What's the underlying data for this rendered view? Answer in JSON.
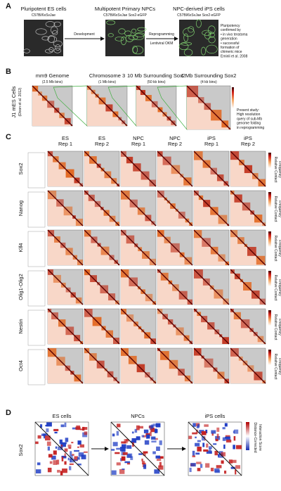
{
  "panel_a": {
    "label": "A",
    "stages": [
      {
        "title": "Pluripotent ES cells",
        "subtitle": "C57Bl/6xSvJae"
      },
      {
        "title": "Multipotent Primary NPCs",
        "subtitle": "C57Bl/6xSvJae  Sox2-eGFP"
      },
      {
        "title": "NPC-derived iPS cells",
        "subtitle": "C57Bl/6xSvJae Sox2-eGFP"
      }
    ],
    "arrow_1": "Development",
    "arrow_2_top": "Reprogramming",
    "arrow_2_bottom": "Lentiviral OKM",
    "note": [
      "Pluripotency",
      "confirmed by",
      "• in vivo teratoma",
      "generation",
      "• successful",
      "formation of",
      "chimeric mice",
      "Eminli et al. 2008"
    ]
  },
  "panel_b": {
    "label": "B",
    "row_label": "J1 mES Cells",
    "row_source": "(Dixon et al. 2012)",
    "maps": [
      {
        "title": "mm9 Genome",
        "subtitle": "(2.5 Mb bins)"
      },
      {
        "title": "Chromosome 3",
        "subtitle": "(1 Mb bins)"
      },
      {
        "title": "10 Mb Surrounding Sox2",
        "subtitle": "(50 kb bins)"
      },
      {
        "title": "1 Mb Surrounding Sox2",
        "subtitle": "(4 kb bins)"
      }
    ],
    "note": [
      "Present study:",
      "High resolution",
      "query of sub-Mb",
      "genome folding",
      "in reprogramming"
    ]
  },
  "panel_c": {
    "label": "C",
    "columns": [
      {
        "line1": "ES",
        "line2": "Rep 1"
      },
      {
        "line1": "ES",
        "line2": "Rep 2"
      },
      {
        "line1": "NPC",
        "line2": "Rep 1"
      },
      {
        "line1": "NPC",
        "line2": "Rep 2"
      },
      {
        "line1": "iPS",
        "line2": "Rep 1"
      },
      {
        "line1": "iPS",
        "line2": "Rep 2"
      }
    ],
    "rows": [
      "Sox2",
      "Nanog",
      "Klf4",
      "Olig1-Olig2",
      "Nestin",
      "Oct4"
    ],
    "colorbar_label": [
      "Relative Contact",
      "Frequency"
    ]
  },
  "panel_d": {
    "label": "D",
    "row_label": "Sox2",
    "columns": [
      "ES cells",
      "NPCs",
      "iPS cells"
    ],
    "colorbar_label": [
      "Distance-Corrected",
      "Interaction Score"
    ]
  }
}
